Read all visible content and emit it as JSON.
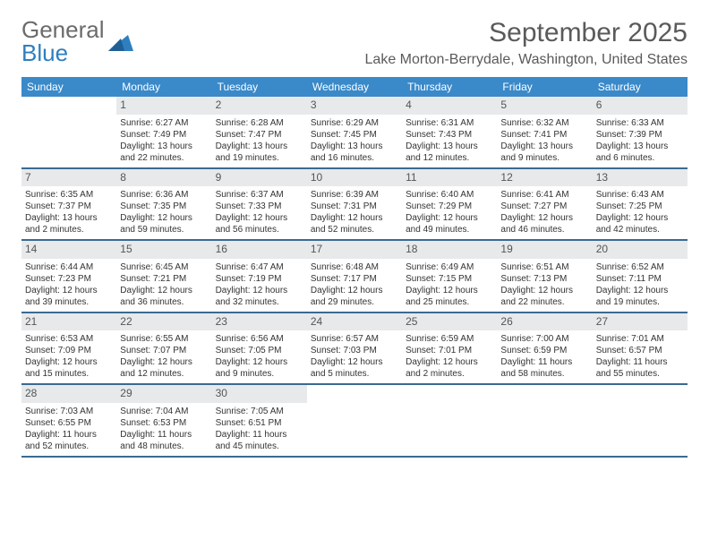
{
  "logo": {
    "text1": "General",
    "text2": "Blue"
  },
  "heading": {
    "month_title": "September 2025",
    "location": "Lake Morton-Berrydale, Washington, United States"
  },
  "colors": {
    "header_bg": "#3a89c9",
    "header_text": "#ffffff",
    "daynum_bg": "#e7e9eb",
    "daynum_text": "#555555",
    "row_border": "#3a6a93",
    "body_text": "#333333",
    "logo_grey": "#6b6b6b",
    "logo_blue": "#2f7fbf"
  },
  "typography": {
    "month_title_fontsize": 30,
    "location_fontsize": 16,
    "dayhead_fontsize": 12,
    "daynum_fontsize": 12,
    "cell_fontsize": 10
  },
  "day_headers": [
    "Sunday",
    "Monday",
    "Tuesday",
    "Wednesday",
    "Thursday",
    "Friday",
    "Saturday"
  ],
  "weeks": [
    [
      {
        "n": "",
        "sunrise": "",
        "sunset": "",
        "daylight": ""
      },
      {
        "n": "1",
        "sunrise": "Sunrise: 6:27 AM",
        "sunset": "Sunset: 7:49 PM",
        "daylight": "Daylight: 13 hours and 22 minutes."
      },
      {
        "n": "2",
        "sunrise": "Sunrise: 6:28 AM",
        "sunset": "Sunset: 7:47 PM",
        "daylight": "Daylight: 13 hours and 19 minutes."
      },
      {
        "n": "3",
        "sunrise": "Sunrise: 6:29 AM",
        "sunset": "Sunset: 7:45 PM",
        "daylight": "Daylight: 13 hours and 16 minutes."
      },
      {
        "n": "4",
        "sunrise": "Sunrise: 6:31 AM",
        "sunset": "Sunset: 7:43 PM",
        "daylight": "Daylight: 13 hours and 12 minutes."
      },
      {
        "n": "5",
        "sunrise": "Sunrise: 6:32 AM",
        "sunset": "Sunset: 7:41 PM",
        "daylight": "Daylight: 13 hours and 9 minutes."
      },
      {
        "n": "6",
        "sunrise": "Sunrise: 6:33 AM",
        "sunset": "Sunset: 7:39 PM",
        "daylight": "Daylight: 13 hours and 6 minutes."
      }
    ],
    [
      {
        "n": "7",
        "sunrise": "Sunrise: 6:35 AM",
        "sunset": "Sunset: 7:37 PM",
        "daylight": "Daylight: 13 hours and 2 minutes."
      },
      {
        "n": "8",
        "sunrise": "Sunrise: 6:36 AM",
        "sunset": "Sunset: 7:35 PM",
        "daylight": "Daylight: 12 hours and 59 minutes."
      },
      {
        "n": "9",
        "sunrise": "Sunrise: 6:37 AM",
        "sunset": "Sunset: 7:33 PM",
        "daylight": "Daylight: 12 hours and 56 minutes."
      },
      {
        "n": "10",
        "sunrise": "Sunrise: 6:39 AM",
        "sunset": "Sunset: 7:31 PM",
        "daylight": "Daylight: 12 hours and 52 minutes."
      },
      {
        "n": "11",
        "sunrise": "Sunrise: 6:40 AM",
        "sunset": "Sunset: 7:29 PM",
        "daylight": "Daylight: 12 hours and 49 minutes."
      },
      {
        "n": "12",
        "sunrise": "Sunrise: 6:41 AM",
        "sunset": "Sunset: 7:27 PM",
        "daylight": "Daylight: 12 hours and 46 minutes."
      },
      {
        "n": "13",
        "sunrise": "Sunrise: 6:43 AM",
        "sunset": "Sunset: 7:25 PM",
        "daylight": "Daylight: 12 hours and 42 minutes."
      }
    ],
    [
      {
        "n": "14",
        "sunrise": "Sunrise: 6:44 AM",
        "sunset": "Sunset: 7:23 PM",
        "daylight": "Daylight: 12 hours and 39 minutes."
      },
      {
        "n": "15",
        "sunrise": "Sunrise: 6:45 AM",
        "sunset": "Sunset: 7:21 PM",
        "daylight": "Daylight: 12 hours and 36 minutes."
      },
      {
        "n": "16",
        "sunrise": "Sunrise: 6:47 AM",
        "sunset": "Sunset: 7:19 PM",
        "daylight": "Daylight: 12 hours and 32 minutes."
      },
      {
        "n": "17",
        "sunrise": "Sunrise: 6:48 AM",
        "sunset": "Sunset: 7:17 PM",
        "daylight": "Daylight: 12 hours and 29 minutes."
      },
      {
        "n": "18",
        "sunrise": "Sunrise: 6:49 AM",
        "sunset": "Sunset: 7:15 PM",
        "daylight": "Daylight: 12 hours and 25 minutes."
      },
      {
        "n": "19",
        "sunrise": "Sunrise: 6:51 AM",
        "sunset": "Sunset: 7:13 PM",
        "daylight": "Daylight: 12 hours and 22 minutes."
      },
      {
        "n": "20",
        "sunrise": "Sunrise: 6:52 AM",
        "sunset": "Sunset: 7:11 PM",
        "daylight": "Daylight: 12 hours and 19 minutes."
      }
    ],
    [
      {
        "n": "21",
        "sunrise": "Sunrise: 6:53 AM",
        "sunset": "Sunset: 7:09 PM",
        "daylight": "Daylight: 12 hours and 15 minutes."
      },
      {
        "n": "22",
        "sunrise": "Sunrise: 6:55 AM",
        "sunset": "Sunset: 7:07 PM",
        "daylight": "Daylight: 12 hours and 12 minutes."
      },
      {
        "n": "23",
        "sunrise": "Sunrise: 6:56 AM",
        "sunset": "Sunset: 7:05 PM",
        "daylight": "Daylight: 12 hours and 9 minutes."
      },
      {
        "n": "24",
        "sunrise": "Sunrise: 6:57 AM",
        "sunset": "Sunset: 7:03 PM",
        "daylight": "Daylight: 12 hours and 5 minutes."
      },
      {
        "n": "25",
        "sunrise": "Sunrise: 6:59 AM",
        "sunset": "Sunset: 7:01 PM",
        "daylight": "Daylight: 12 hours and 2 minutes."
      },
      {
        "n": "26",
        "sunrise": "Sunrise: 7:00 AM",
        "sunset": "Sunset: 6:59 PM",
        "daylight": "Daylight: 11 hours and 58 minutes."
      },
      {
        "n": "27",
        "sunrise": "Sunrise: 7:01 AM",
        "sunset": "Sunset: 6:57 PM",
        "daylight": "Daylight: 11 hours and 55 minutes."
      }
    ],
    [
      {
        "n": "28",
        "sunrise": "Sunrise: 7:03 AM",
        "sunset": "Sunset: 6:55 PM",
        "daylight": "Daylight: 11 hours and 52 minutes."
      },
      {
        "n": "29",
        "sunrise": "Sunrise: 7:04 AM",
        "sunset": "Sunset: 6:53 PM",
        "daylight": "Daylight: 11 hours and 48 minutes."
      },
      {
        "n": "30",
        "sunrise": "Sunrise: 7:05 AM",
        "sunset": "Sunset: 6:51 PM",
        "daylight": "Daylight: 11 hours and 45 minutes."
      },
      {
        "n": "",
        "sunrise": "",
        "sunset": "",
        "daylight": ""
      },
      {
        "n": "",
        "sunrise": "",
        "sunset": "",
        "daylight": ""
      },
      {
        "n": "",
        "sunrise": "",
        "sunset": "",
        "daylight": ""
      },
      {
        "n": "",
        "sunrise": "",
        "sunset": "",
        "daylight": ""
      }
    ]
  ]
}
